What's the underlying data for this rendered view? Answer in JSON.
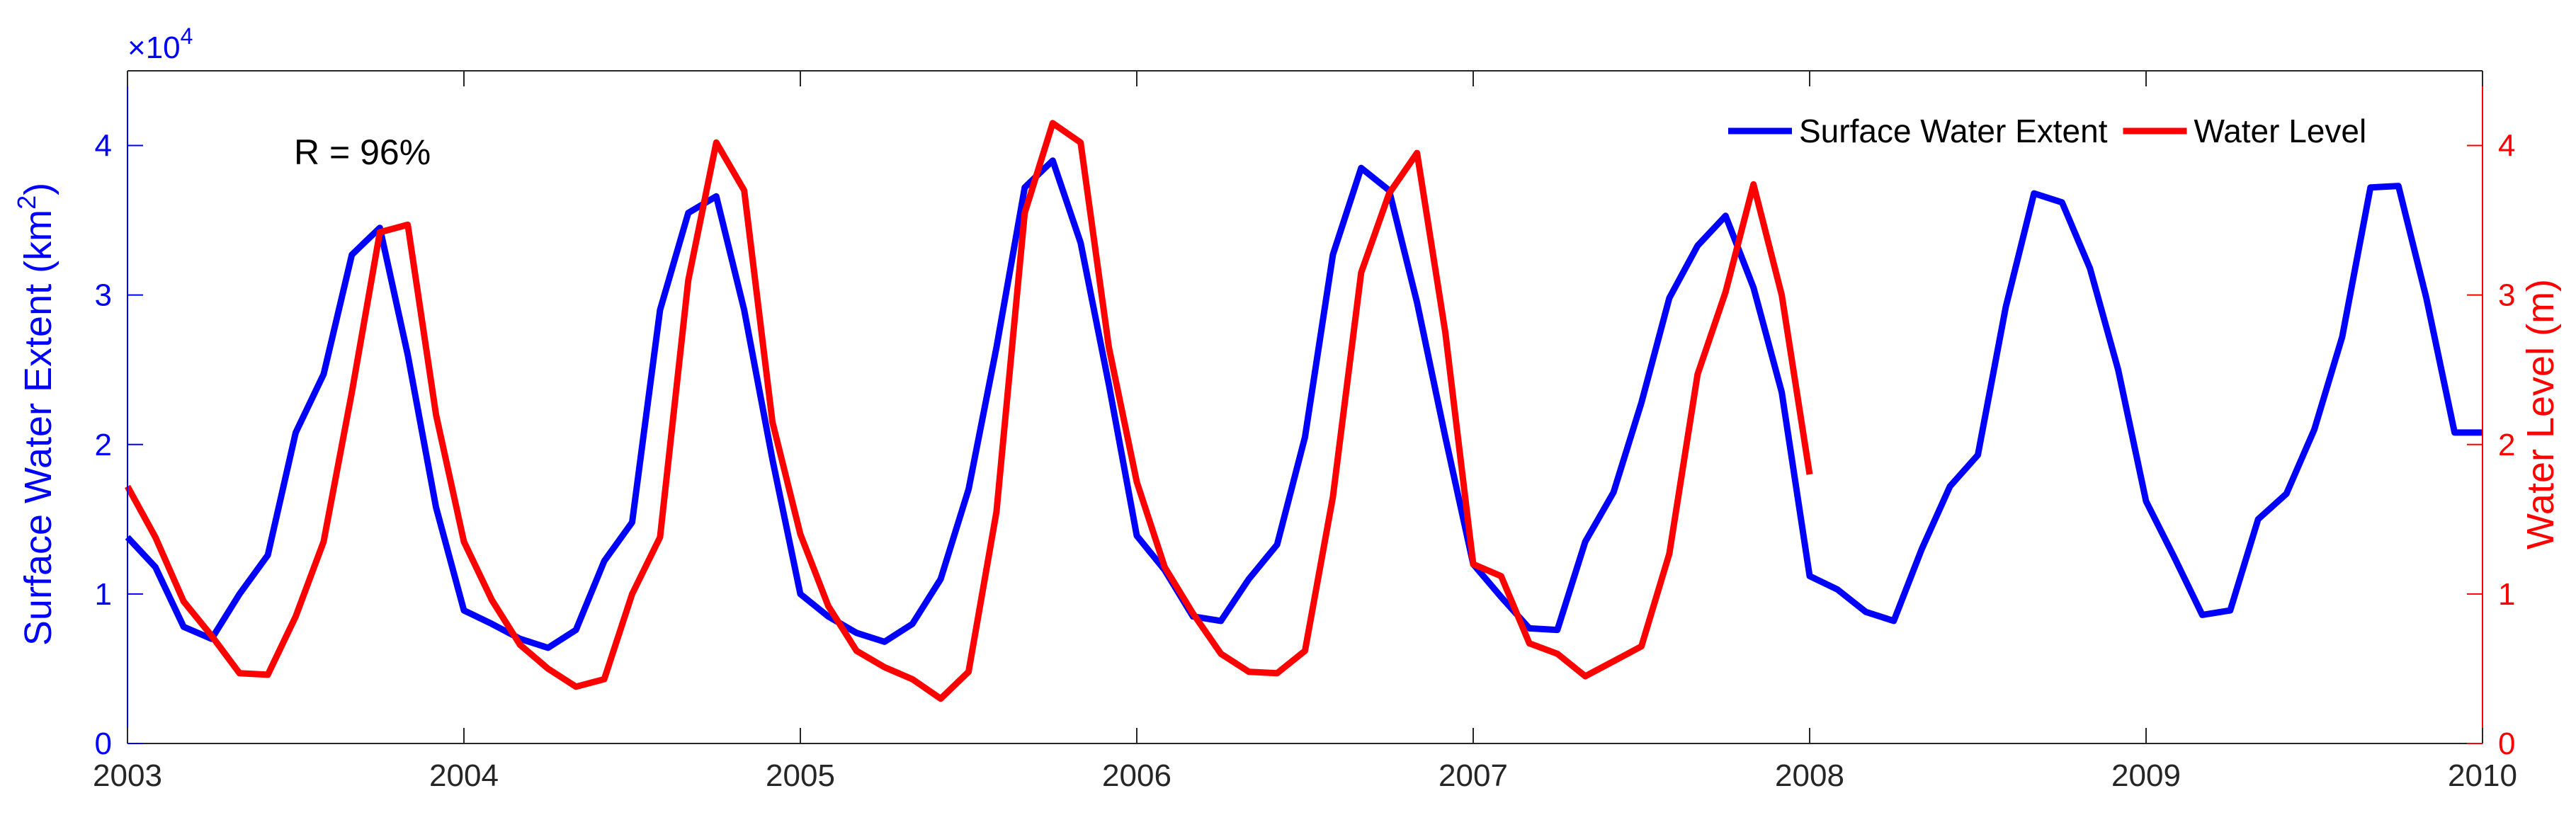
{
  "chart_data": {
    "type": "line",
    "title": "",
    "xlabel": "",
    "xlim": [
      2003,
      2010
    ],
    "x_ticks": [
      "2003",
      "2004",
      "2005",
      "2006",
      "2007",
      "2008",
      "2009",
      "2010"
    ],
    "y_left": {
      "label": "Surface Water Extent (km",
      "label_superscript": "2",
      "label_close": ")",
      "ylim": [
        0,
        4.5
      ],
      "ticks": [
        "0",
        "1",
        "2",
        "3",
        "4"
      ],
      "multiplier_prefix": "×10",
      "multiplier_exponent": "4",
      "color": "#0000ff"
    },
    "y_right": {
      "label": "Water Level (m)",
      "ylim": [
        0,
        4.5
      ],
      "ticks": [
        "0",
        "1",
        "2",
        "3",
        "4"
      ],
      "color": "#ff0000"
    },
    "annotation": "R = 96%",
    "legend_position": "top-right",
    "grid": false,
    "series": [
      {
        "name": "Surface Water Extent",
        "axis": "left",
        "color": "#0000ff",
        "x": [
          2003.0,
          2003.083,
          2003.167,
          2003.25,
          2003.333,
          2003.417,
          2003.5,
          2003.583,
          2003.667,
          2003.75,
          2003.833,
          2003.917,
          2004.0,
          2004.083,
          2004.167,
          2004.25,
          2004.333,
          2004.417,
          2004.5,
          2004.583,
          2004.667,
          2004.75,
          2004.833,
          2004.917,
          2005.0,
          2005.083,
          2005.167,
          2005.25,
          2005.333,
          2005.417,
          2005.5,
          2005.583,
          2005.667,
          2005.75,
          2005.833,
          2005.917,
          2006.0,
          2006.083,
          2006.167,
          2006.25,
          2006.333,
          2006.417,
          2006.5,
          2006.583,
          2006.667,
          2006.75,
          2006.833,
          2006.917,
          2007.0,
          2007.083,
          2007.167,
          2007.25,
          2007.333,
          2007.417,
          2007.5,
          2007.583,
          2007.667,
          2007.75,
          2007.833,
          2007.917,
          2008.0,
          2008.083,
          2008.167,
          2008.25,
          2008.333,
          2008.417,
          2008.5,
          2008.583,
          2008.667,
          2008.75,
          2008.833,
          2008.917,
          2009.0,
          2009.083,
          2009.167,
          2009.25,
          2009.333,
          2009.417,
          2009.5,
          2009.583,
          2009.667,
          2009.75,
          2009.833,
          2009.917,
          2010.0
        ],
        "values": [
          1.38,
          1.18,
          0.78,
          0.7,
          1.0,
          1.26,
          2.08,
          2.47,
          3.27,
          3.45,
          2.6,
          1.58,
          0.89,
          0.8,
          0.7,
          0.64,
          0.76,
          1.22,
          1.48,
          2.9,
          3.55,
          3.66,
          2.9,
          1.9,
          1.0,
          0.85,
          0.74,
          0.68,
          0.8,
          1.1,
          1.7,
          2.65,
          3.72,
          3.9,
          3.35,
          2.4,
          1.39,
          1.16,
          0.85,
          0.82,
          1.1,
          1.33,
          2.05,
          3.27,
          3.85,
          3.7,
          2.95,
          2.05,
          1.2,
          0.98,
          0.77,
          0.76,
          1.35,
          1.68,
          2.28,
          2.98,
          3.33,
          3.53,
          3.05,
          2.35,
          1.12,
          1.03,
          0.88,
          0.82,
          1.3,
          1.72,
          1.93,
          2.92,
          3.68,
          3.62,
          3.18,
          2.5,
          1.62,
          1.25,
          0.86,
          0.89,
          1.5,
          1.67,
          2.1,
          2.72,
          3.72,
          3.73,
          2.98,
          2.08,
          2.08
        ]
      },
      {
        "name": "Water Level",
        "axis": "right",
        "color": "#ff0000",
        "x": [
          2003.0,
          2003.083,
          2003.167,
          2003.25,
          2003.333,
          2003.417,
          2003.5,
          2003.583,
          2003.667,
          2003.75,
          2003.833,
          2003.917,
          2004.0,
          2004.083,
          2004.167,
          2004.25,
          2004.333,
          2004.417,
          2004.5,
          2004.583,
          2004.667,
          2004.75,
          2004.833,
          2004.917,
          2005.0,
          2005.083,
          2005.167,
          2005.25,
          2005.333,
          2005.417,
          2005.5,
          2005.583,
          2005.667,
          2005.75,
          2005.833,
          2005.917,
          2006.0,
          2006.083,
          2006.167,
          2006.25,
          2006.333,
          2006.417,
          2006.5,
          2006.583,
          2006.667,
          2006.75,
          2006.833,
          2006.917,
          2007.0,
          2007.083,
          2007.167,
          2007.25,
          2007.333,
          2007.417,
          2007.5,
          2007.583,
          2007.667,
          2007.75,
          2007.833,
          2007.917,
          2008.0
        ],
        "values": [
          1.72,
          1.38,
          0.95,
          0.72,
          0.47,
          0.46,
          0.85,
          1.35,
          2.35,
          3.42,
          3.47,
          2.2,
          1.35,
          0.96,
          0.66,
          0.5,
          0.38,
          0.43,
          1.0,
          1.38,
          3.1,
          4.02,
          3.7,
          2.15,
          1.4,
          0.92,
          0.62,
          0.51,
          0.43,
          0.3,
          0.48,
          1.55,
          3.55,
          4.15,
          4.02,
          2.65,
          1.75,
          1.18,
          0.87,
          0.6,
          0.48,
          0.47,
          0.62,
          1.65,
          3.15,
          3.68,
          3.95,
          2.75,
          1.2,
          1.12,
          0.67,
          0.6,
          0.45,
          0.55,
          0.65,
          1.27,
          2.47,
          3.02,
          3.74,
          3.0,
          1.8
        ]
      }
    ]
  }
}
